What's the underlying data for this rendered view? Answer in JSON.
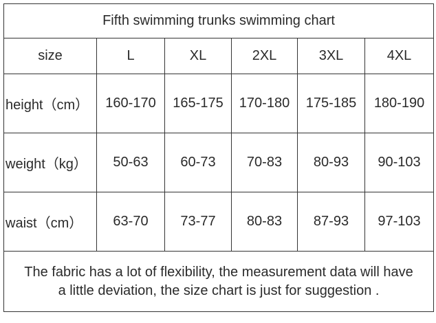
{
  "table": {
    "title": "Fifth swimming trunks swimming chart",
    "header": [
      "size",
      "L",
      "XL",
      "2XL",
      "3XL",
      "4XL"
    ],
    "rows": [
      [
        "height（cm）",
        "160-170",
        "165-175",
        "170-180",
        "175-185",
        "180-190"
      ],
      [
        "weight（kg）",
        "50-63",
        "60-73",
        "70-83",
        "80-93",
        "90-103"
      ],
      [
        "waist（cm）",
        "63-70",
        "73-77",
        "80-83",
        "87-93",
        "97-103"
      ]
    ],
    "note": [
      "The fabric has a lot of flexibility, the measurement data will have",
      "a little deviation, the size chart is just for suggestion ."
    ]
  }
}
